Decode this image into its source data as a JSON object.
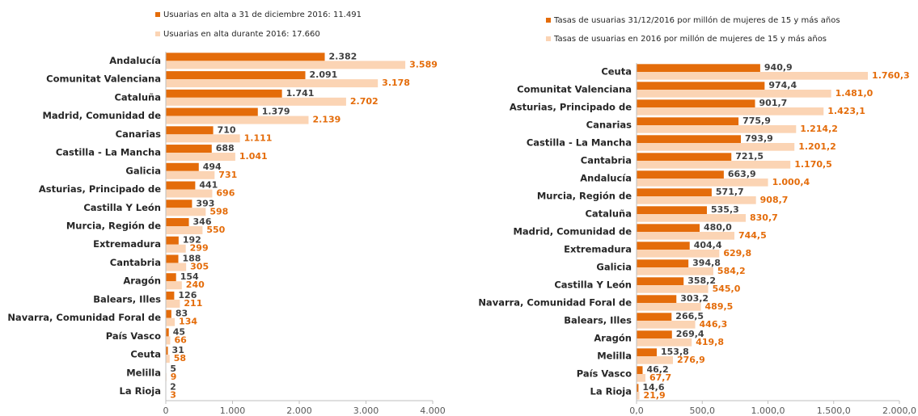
{
  "chart_data": [
    {
      "type": "bar",
      "orientation": "horizontal",
      "categories": [
        "Andalucía",
        "Comunitat Valenciana",
        "Cataluña",
        "Madrid, Comunidad de",
        "Canarias",
        "Castilla - La Mancha",
        "Galicia",
        "Asturias, Principado de",
        "Castilla Y León",
        "Murcia, Región de",
        "Extremadura",
        "Cantabria",
        "Aragón",
        "Balears, Illes",
        "Navarra, Comunidad Foral de",
        "País Vasco",
        "Ceuta",
        "Melilla",
        "La Rioja"
      ],
      "series": [
        {
          "name": "Usuarias en alta a 31 de diciembre 2016: 11.491",
          "color": "#e46c0a",
          "label_color": "#404040",
          "values": [
            2382,
            2091,
            1741,
            1379,
            710,
            688,
            494,
            441,
            393,
            346,
            192,
            188,
            154,
            126,
            83,
            45,
            31,
            5,
            2
          ],
          "value_labels": [
            "2.382",
            "2.091",
            "1.741",
            "1.379",
            "710",
            "688",
            "494",
            "441",
            "393",
            "346",
            "192",
            "188",
            "154",
            "126",
            "83",
            "45",
            "31",
            "5",
            "2"
          ]
        },
        {
          "name": "Usuarias en alta durante 2016: 17.660",
          "color": "#fbd4b4",
          "label_color": "#e46c0a",
          "values": [
            3589,
            3178,
            2702,
            2139,
            1111,
            1041,
            731,
            696,
            598,
            550,
            299,
            305,
            240,
            211,
            134,
            66,
            58,
            9,
            3
          ],
          "value_labels": [
            "3.589",
            "3.178",
            "2.702",
            "2.139",
            "1.111",
            "1.041",
            "731",
            "696",
            "598",
            "550",
            "299",
            "305",
            "240",
            "211",
            "134",
            "66",
            "58",
            "9",
            "3"
          ]
        }
      ],
      "xlim": [
        0,
        4000
      ],
      "xticks": [
        0,
        {
          "value": 1000,
          "label": "1.000"
        },
        {
          "value": 2000,
          "label": "2.000"
        },
        {
          "value": 3000,
          "label": "3.000"
        },
        {
          "value": 4000,
          "label": "4.000"
        }
      ]
    },
    {
      "type": "bar",
      "orientation": "horizontal",
      "categories": [
        "Ceuta",
        "Comunitat Valenciana",
        "Asturias, Principado de",
        "Canarias",
        "Castilla - La Mancha",
        "Cantabria",
        "Andalucía",
        "Murcia, Región de",
        "Cataluña",
        "Madrid, Comunidad de",
        "Extremadura",
        "Galicia",
        "Castilla Y León",
        "Navarra, Comunidad Foral de",
        "Balears, Illes",
        "Aragón",
        "Melilla",
        "País Vasco",
        "La Rioja"
      ],
      "series": [
        {
          "name": "Tasas de usuarias 31/12/2016 por millón de mujeres de 15 y más años",
          "color": "#e46c0a",
          "label_color": "#404040",
          "values": [
            940.9,
            974.4,
            901.7,
            775.9,
            793.9,
            721.5,
            663.9,
            571.7,
            535.3,
            480.0,
            404.4,
            394.8,
            358.2,
            303.2,
            266.5,
            269.4,
            153.8,
            46.2,
            14.6
          ],
          "value_labels": [
            "940,9",
            "974,4",
            "901,7",
            "775,9",
            "793,9",
            "721,5",
            "663,9",
            "571,7",
            "535,3",
            "480,0",
            "404,4",
            "394,8",
            "358,2",
            "303,2",
            "266,5",
            "269,4",
            "153,8",
            "46,2",
            "14,6"
          ]
        },
        {
          "name": "Tasas  de usuarias en 2016 por millón de mujeres de 15 y más años",
          "color": "#fbd4b4",
          "label_color": "#e46c0a",
          "values": [
            1760.3,
            1481.0,
            1423.1,
            1214.2,
            1201.2,
            1170.5,
            1000.4,
            908.7,
            830.7,
            744.5,
            629.8,
            584.2,
            545.0,
            489.5,
            446.3,
            419.8,
            276.9,
            67.7,
            21.9
          ],
          "value_labels": [
            "1.760,3",
            "1.481,0",
            "1.423,1",
            "1.214,2",
            "1.201,2",
            "1.170,5",
            "1.000,4",
            "908,7",
            "830,7",
            "744,5",
            "629,8",
            "584,2",
            "545,0",
            "489,5",
            "446,3",
            "419,8",
            "276,9",
            "67,7",
            "21,9"
          ]
        }
      ],
      "xlim": [
        0,
        2000
      ],
      "xticks": [
        {
          "value": 0,
          "label": "0,0"
        },
        {
          "value": 500,
          "label": "500,0"
        },
        {
          "value": 1000,
          "label": "1.000,0"
        },
        {
          "value": 1500,
          "label": "1.500,0"
        },
        {
          "value": 2000,
          "label": "2.000,0"
        }
      ]
    }
  ]
}
